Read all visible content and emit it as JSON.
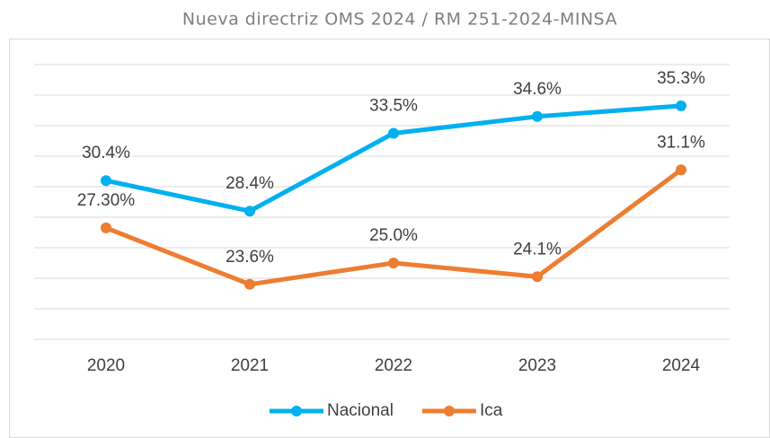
{
  "chart_data": {
    "type": "line",
    "title": "Nueva directriz OMS 2024 / RM 251-2024-MINSA",
    "categories": [
      "2020",
      "2021",
      "2022",
      "2023",
      "2024"
    ],
    "series": [
      {
        "name": "Nacional",
        "color": "#00b0f0",
        "values": [
          30.4,
          28.4,
          33.5,
          34.6,
          35.3
        ],
        "value_labels": [
          "30.4%",
          "28.4%",
          "33.5%",
          "34.6%",
          "35.3%"
        ]
      },
      {
        "name": "Ica",
        "color": "#ed7d31",
        "values": [
          27.3,
          23.6,
          25.0,
          24.1,
          31.1
        ],
        "value_labels": [
          "27.30%",
          "23.6%",
          "25.0%",
          "24.1%",
          "31.1%"
        ]
      }
    ],
    "ylim": [
      20,
      38
    ],
    "yticks": [
      20,
      22,
      24,
      26,
      28,
      30,
      32,
      34,
      36,
      38
    ],
    "grid": true,
    "legend": "bottom"
  }
}
